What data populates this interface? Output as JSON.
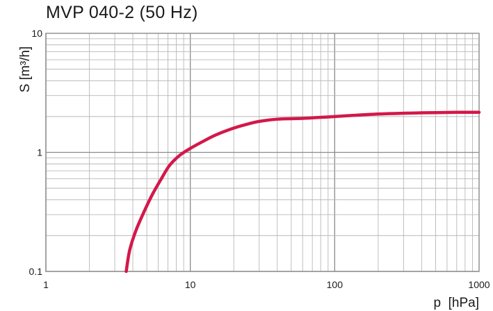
{
  "chart_data": {
    "type": "line",
    "title": "MVP 040-2 (50 Hz)",
    "xlabel": "p  [hPa]",
    "ylabel": "S  [m³/h]",
    "xscale": "log",
    "yscale": "log",
    "xlim": [
      1,
      1000
    ],
    "ylim": [
      0.1,
      10
    ],
    "xticks": [
      1,
      10,
      100,
      1000
    ],
    "xtick_labels": [
      "1",
      "10",
      "100",
      "1000"
    ],
    "yticks": [
      0.1,
      1,
      10
    ],
    "ytick_labels": [
      "0.1",
      "1",
      "10"
    ],
    "grid": true,
    "line_color": "#d3184a",
    "series": [
      {
        "x": [
          3.6,
          3.8,
          4.2,
          4.8,
          5.5,
          6.3,
          7.2,
          8.5,
          10,
          12,
          15,
          20,
          25,
          30,
          40,
          60,
          100,
          200,
          400,
          700,
          1000
        ],
        "y": [
          0.1,
          0.15,
          0.22,
          0.32,
          0.45,
          0.6,
          0.78,
          0.95,
          1.08,
          1.22,
          1.4,
          1.6,
          1.73,
          1.82,
          1.9,
          1.93,
          2.0,
          2.1,
          2.15,
          2.17,
          2.17
        ]
      }
    ]
  }
}
